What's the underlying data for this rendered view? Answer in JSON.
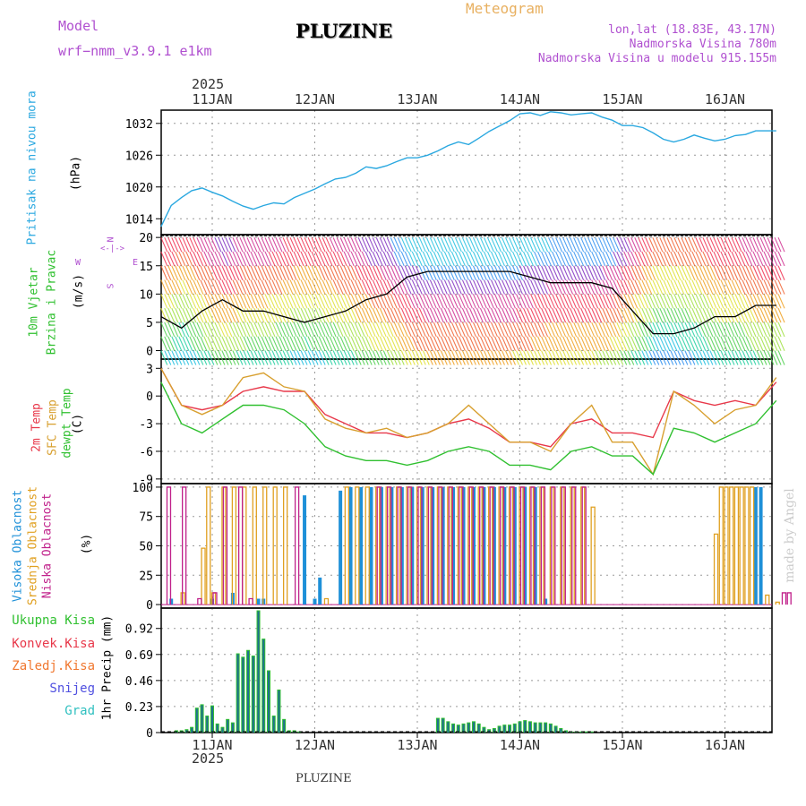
{
  "header": {
    "model_label": "Model",
    "model_name": "wrf−nmm_v3.9.1  e1km",
    "station": "PLUZINE",
    "product": "Meteogram",
    "lonlat": "lon,lat (18.83E, 43.17N)",
    "altitude": "Nadmorska Visina 780m",
    "model_altitude": "Nadmorska Visina u modelu 915.155m",
    "year_top": "2025",
    "year_bottom": "2025",
    "footer_station": "PLUZINE",
    "credit": "made by Angel"
  },
  "colors": {
    "pressure": "#2aa8e0",
    "temp2m": "#e8384a",
    "sfc_temp": "#d8a030",
    "dewpt": "#30c030",
    "high_cloud": "#1e90d8",
    "mid_cloud": "#e0a020",
    "low_cloud": "#c0208a",
    "precip_total": "#30c030",
    "precip_conv": "#e8384a",
    "precip_frz": "#f07830",
    "precip_snow": "#5050e0",
    "precip_grad": "#30c0c0",
    "wind_dir_label": "#b050d0",
    "header_purple": "#b050d0",
    "header_orange": "#e8b060"
  },
  "chart_data": [
    {
      "type": "line",
      "title": "Pritisak na nivou mora",
      "ylabel": "(hPa)",
      "x_ticks": [
        "11JAN",
        "12JAN",
        "13JAN",
        "14JAN",
        "15JAN",
        "16JAN"
      ],
      "y_ticks": [
        1014,
        1020,
        1026,
        1032
      ],
      "ylim": [
        1011,
        1034.5
      ],
      "series": [
        {
          "name": "Pritisak na nivou mora",
          "x": [
            0,
            0.1,
            0.2,
            0.3,
            0.4,
            0.5,
            0.6,
            0.7,
            0.8,
            0.9,
            1.0,
            1.1,
            1.2,
            1.3,
            1.4,
            1.5,
            1.6,
            1.7,
            1.8,
            1.9,
            2.0,
            2.1,
            2.2,
            2.3,
            2.4,
            2.5,
            2.6,
            2.7,
            2.8,
            2.9,
            3.0,
            3.1,
            3.2,
            3.3,
            3.4,
            3.5,
            3.6,
            3.7,
            3.8,
            3.9,
            4.0,
            4.1,
            4.2,
            4.3,
            4.4,
            4.5,
            4.6,
            4.7,
            4.8,
            4.9,
            5.0,
            5.1,
            5.2,
            5.3,
            5.4,
            5.5,
            5.6,
            5.7,
            5.8,
            5.9,
            6.0
          ],
          "values": [
            1012.5,
            1016.5,
            1018.0,
            1019.3,
            1019.8,
            1019.0,
            1018.3,
            1017.3,
            1016.4,
            1015.8,
            1016.5,
            1017.0,
            1016.8,
            1018.0,
            1018.8,
            1019.6,
            1020.6,
            1021.5,
            1021.8,
            1022.6,
            1023.8,
            1023.5,
            1024.0,
            1024.8,
            1025.5,
            1025.5,
            1026.0,
            1026.8,
            1027.8,
            1028.5,
            1028.0,
            1029.2,
            1030.5,
            1031.5,
            1032.5,
            1033.8,
            1034.0,
            1033.5,
            1034.2,
            1034.0,
            1033.6,
            1033.8,
            1034.0,
            1033.2,
            1032.6,
            1031.6,
            1031.6,
            1031.2,
            1030.2,
            1029.0,
            1028.5,
            1029.0,
            1029.8,
            1029.2,
            1028.7,
            1029.0,
            1029.7,
            1029.9,
            1030.6,
            1030.6,
            1030.6
          ]
        }
      ]
    },
    {
      "type": "line",
      "title": "10m Vjetar Brzina i Pravac",
      "ylabel": "(m/s)",
      "direction_axis_labels": [
        "N",
        "E",
        "S",
        "W"
      ],
      "y_ticks": [
        0,
        5,
        10,
        15,
        20
      ],
      "ylim": [
        -1.5,
        20.5
      ],
      "series": [
        {
          "name": "Brzina",
          "x": [
            0,
            0.2,
            0.4,
            0.6,
            0.8,
            1.0,
            1.2,
            1.4,
            1.6,
            1.8,
            2.0,
            2.2,
            2.4,
            2.6,
            2.8,
            3.0,
            3.2,
            3.4,
            3.6,
            3.8,
            4.0,
            4.2,
            4.4,
            4.6,
            4.8,
            5.0,
            5.2,
            5.4,
            5.6,
            5.8,
            6.0
          ],
          "values": [
            6,
            4,
            7,
            9,
            7,
            7,
            6,
            5,
            6,
            7,
            9,
            10,
            13,
            14,
            14,
            14,
            14,
            14,
            13,
            12,
            12,
            12,
            11,
            7,
            3,
            3,
            4,
            6,
            6,
            8,
            8
          ]
        }
      ]
    },
    {
      "type": "line",
      "title": "2m Temp / SFC Temp / dewpt Temp",
      "ylabel": "(C)",
      "y_ticks": [
        -9,
        -6,
        -3,
        0,
        3
      ],
      "ylim": [
        -9.5,
        4
      ],
      "series": [
        {
          "name": "2m Temp",
          "x": [
            0,
            0.2,
            0.4,
            0.6,
            0.8,
            1.0,
            1.2,
            1.4,
            1.6,
            1.8,
            2.0,
            2.2,
            2.4,
            2.6,
            2.8,
            3.0,
            3.2,
            3.4,
            3.6,
            3.8,
            4.0,
            4.2,
            4.4,
            4.6,
            4.8,
            5.0,
            5.2,
            5.4,
            5.6,
            5.8,
            6.0
          ],
          "values": [
            3,
            -1,
            -1.5,
            -1,
            0.5,
            1,
            0.5,
            0.5,
            -2,
            -3,
            -4,
            -4,
            -4.5,
            -4,
            -3,
            -2.5,
            -3.5,
            -5,
            -5,
            -5.5,
            -3,
            -2.5,
            -4,
            -4,
            -4.5,
            0.5,
            -0.5,
            -1,
            -0.5,
            -1,
            1.5
          ]
        },
        {
          "name": "SFC Temp",
          "x": [
            0,
            0.2,
            0.4,
            0.6,
            0.8,
            1.0,
            1.2,
            1.4,
            1.6,
            1.8,
            2.0,
            2.2,
            2.4,
            2.6,
            2.8,
            3.0,
            3.2,
            3.4,
            3.6,
            3.8,
            4.0,
            4.2,
            4.4,
            4.6,
            4.8,
            5.0,
            5.2,
            5.4,
            5.6,
            5.8,
            6.0
          ],
          "values": [
            3,
            -1,
            -2,
            -1,
            2,
            2.5,
            1,
            0.5,
            -2.5,
            -3.5,
            -4,
            -3.5,
            -4.5,
            -4,
            -3,
            -1,
            -3,
            -5,
            -5,
            -6,
            -3,
            -1,
            -5,
            -5,
            -8.5,
            0.5,
            -1,
            -3,
            -1.5,
            -1,
            2
          ]
        },
        {
          "name": "dewpt Temp",
          "x": [
            0,
            0.2,
            0.4,
            0.6,
            0.8,
            1.0,
            1.2,
            1.4,
            1.6,
            1.8,
            2.0,
            2.2,
            2.4,
            2.6,
            2.8,
            3.0,
            3.2,
            3.4,
            3.6,
            3.8,
            4.0,
            4.2,
            4.4,
            4.6,
            4.8,
            5.0,
            5.2,
            5.4,
            5.6,
            5.8,
            6.0
          ],
          "values": [
            1.5,
            -3,
            -4,
            -2.5,
            -1,
            -1,
            -1.5,
            -3,
            -5.5,
            -6.5,
            -7,
            -7,
            -7.5,
            -7,
            -6,
            -5.5,
            -6,
            -7.5,
            -7.5,
            -8,
            -6,
            -5.5,
            -6.5,
            -6.5,
            -8.5,
            -3.5,
            -4,
            -5,
            -4,
            -3,
            -0.5
          ]
        }
      ]
    },
    {
      "type": "bar",
      "title": "Visoka Oblacnost / Srednja Oblacnost / Niska Oblacnost",
      "ylabel": "(%)",
      "y_ticks": [
        0,
        25,
        50,
        75,
        100
      ],
      "ylim": [
        -3,
        103
      ],
      "series": [
        {
          "name": "Visoka Oblacnost",
          "x": [
            0.1,
            0.5,
            0.7,
            0.95,
            1.0,
            1.4,
            1.5,
            1.55,
            1.75,
            1.85,
            1.95,
            2.05,
            2.15,
            2.25,
            2.35,
            2.45,
            2.55,
            2.65,
            2.75,
            2.85,
            2.95,
            3.05,
            3.15,
            3.25,
            3.35,
            3.45,
            3.55,
            3.65,
            3.75,
            5.8,
            5.85
          ],
          "values": [
            5,
            5,
            10,
            5,
            5,
            93,
            5,
            23,
            97,
            100,
            100,
            100,
            100,
            100,
            100,
            100,
            100,
            100,
            100,
            100,
            100,
            100,
            100,
            100,
            100,
            100,
            100,
            100,
            5,
            100,
            100
          ]
        },
        {
          "name": "Srednja Oblacnost",
          "x": [
            0.2,
            0.4,
            0.45,
            0.5,
            0.6,
            0.7,
            0.8,
            0.9,
            1.0,
            1.1,
            1.2,
            1.6,
            1.8,
            1.9,
            2.0,
            2.1,
            2.2,
            2.3,
            2.4,
            2.5,
            2.6,
            2.7,
            2.8,
            2.9,
            3.0,
            3.1,
            3.2,
            3.3,
            3.4,
            3.5,
            3.6,
            3.7,
            3.8,
            3.9,
            4.0,
            4.1,
            4.2,
            5.4,
            5.45,
            5.5,
            5.55,
            5.6,
            5.65,
            5.7,
            5.75,
            5.9,
            6.0
          ],
          "values": [
            10,
            48,
            100,
            10,
            100,
            100,
            100,
            100,
            100,
            100,
            100,
            5,
            100,
            100,
            100,
            100,
            100,
            100,
            100,
            100,
            100,
            100,
            100,
            100,
            100,
            100,
            100,
            100,
            100,
            100,
            100,
            100,
            100,
            100,
            100,
            100,
            83,
            60,
            100,
            100,
            100,
            100,
            100,
            100,
            100,
            8,
            2
          ]
        },
        {
          "name": "Niska Oblacnost",
          "x": [
            0.05,
            0.2,
            0.35,
            0.5,
            0.6,
            0.75,
            0.85,
            1.3,
            2.1,
            2.2,
            2.3,
            2.4,
            2.5,
            2.6,
            2.7,
            2.8,
            2.9,
            3.0,
            3.1,
            3.2,
            3.3,
            3.4,
            3.5,
            3.6,
            3.7,
            3.8,
            3.9,
            4.0,
            4.1,
            6.05,
            6.1
          ],
          "values": [
            100,
            100,
            5,
            10,
            100,
            100,
            5,
            100,
            100,
            100,
            100,
            100,
            100,
            100,
            100,
            100,
            100,
            100,
            100,
            100,
            100,
            100,
            100,
            100,
            100,
            100,
            100,
            100,
            100,
            10,
            10
          ]
        }
      ]
    },
    {
      "type": "bar",
      "title": "Ukupna Kisa / Konvek.Kisa / Zaledj.Kisa / Snijeg / Grad",
      "ylabel": "1hr Precip (mm)",
      "y_ticks": [
        0,
        0.23,
        0.46,
        0.69,
        0.92
      ],
      "ylim": [
        0,
        1.1
      ],
      "series": [
        {
          "name": "Ukupna Kisa",
          "x": [
            0.15,
            0.2,
            0.25,
            0.3,
            0.35,
            0.4,
            0.45,
            0.5,
            0.55,
            0.6,
            0.65,
            0.7,
            0.75,
            0.8,
            0.85,
            0.9,
            0.95,
            1.0,
            1.05,
            1.1,
            1.15,
            1.2,
            1.25,
            1.3,
            1.35,
            2.7,
            2.75,
            2.8,
            2.85,
            2.9,
            2.95,
            3.0,
            3.05,
            3.1,
            3.15,
            3.2,
            3.25,
            3.3,
            3.35,
            3.4,
            3.45,
            3.5,
            3.55,
            3.6,
            3.65,
            3.7,
            3.75,
            3.8,
            3.85,
            3.9,
            3.95,
            4.0,
            4.05,
            4.1,
            4.15,
            4.2
          ],
          "values": [
            0.02,
            0.02,
            0.03,
            0.05,
            0.22,
            0.25,
            0.15,
            0.24,
            0.08,
            0.05,
            0.12,
            0.09,
            0.7,
            0.67,
            0.73,
            0.68,
            1.08,
            0.83,
            0.55,
            0.15,
            0.38,
            0.12,
            0.02,
            0.02,
            0.01,
            0.13,
            0.13,
            0.1,
            0.08,
            0.07,
            0.08,
            0.09,
            0.1,
            0.08,
            0.05,
            0.03,
            0.04,
            0.06,
            0.07,
            0.07,
            0.08,
            0.1,
            0.11,
            0.1,
            0.09,
            0.09,
            0.09,
            0.08,
            0.06,
            0.04,
            0.02,
            0.01,
            0.01,
            0.01,
            0.01,
            0.01
          ]
        }
      ]
    }
  ],
  "ylabels": {
    "pressure_title": "Pritisak na nivou mora",
    "pressure_unit": "(hPa)",
    "wind_title1": "10m Vjetar",
    "wind_title2": "Brzina i Pravac",
    "wind_unit": "(m/s)",
    "temp_t1": "2m Temp",
    "temp_t2": "SFC Temp",
    "temp_t3": "dewpt Temp",
    "temp_unit": "(C)",
    "cloud_t1": "Visoka Oblacnost",
    "cloud_t2": "Srednja Oblacnost",
    "cloud_t3": "Niska Oblacnost",
    "cloud_unit": "(%)",
    "precip_unit": "1hr Precip (mm)"
  },
  "precip_legend": [
    "Ukupna Kisa",
    "Konvek.Kisa",
    "Zaledj.Kisa",
    "Snijeg",
    "Grad"
  ]
}
